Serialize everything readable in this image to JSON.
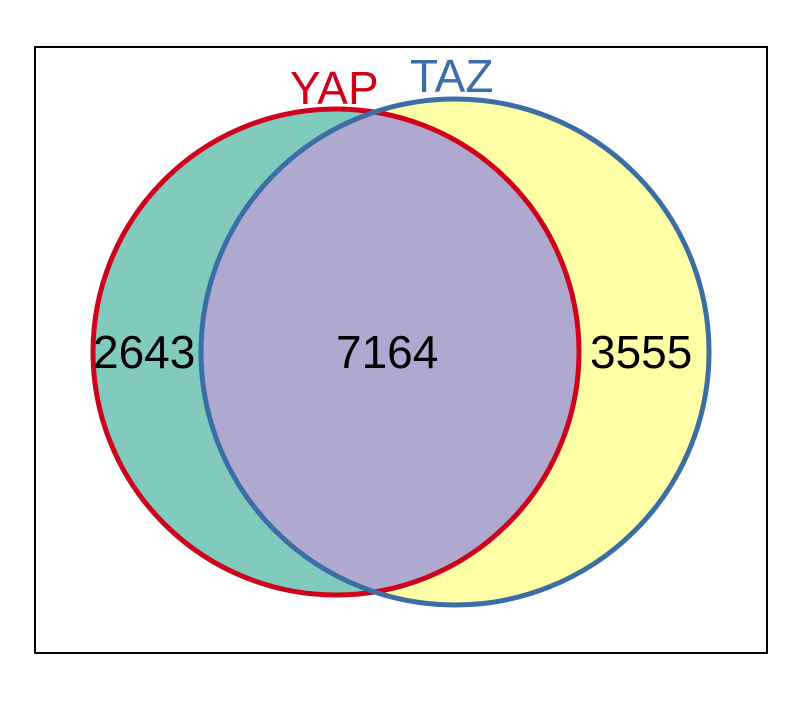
{
  "diagram": {
    "type": "venn",
    "sets": [
      {
        "name": "YAP",
        "color": "#d0021b",
        "fill": "#80cbbd"
      },
      {
        "name": "TAZ",
        "color": "#3a6ea5",
        "fill": "#ffffa6"
      }
    ],
    "intersection_fill": "#b0a9cf",
    "counts": {
      "only_yap": "2643",
      "both": "7164",
      "only_taz": "3555"
    }
  }
}
